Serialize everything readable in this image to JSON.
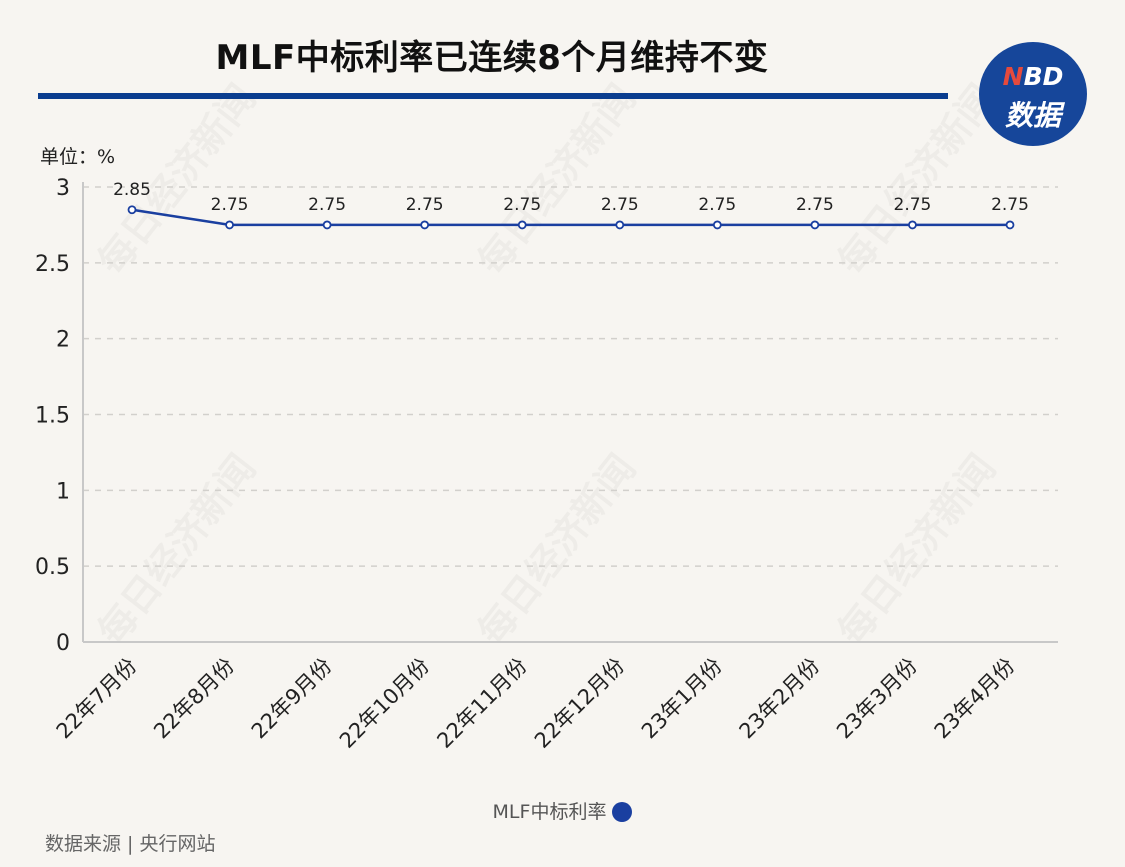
{
  "header": {
    "title": "MLF中标利率已连续8个月维持不变",
    "logo_top_n": "N",
    "logo_top_rest": "BD",
    "logo_bottom": "数据"
  },
  "unit_label": "单位：%",
  "legend_label": "MLF中标利率",
  "source": "数据来源 | 央行网站",
  "watermark_text": "每日经济新闻",
  "colors": {
    "line": "#1a3fa0",
    "title_rule": "#0a3d8f",
    "logo_bg": "#16469a",
    "logo_accent": "#e64a3c"
  },
  "chart_data": {
    "type": "line",
    "categories": [
      "22年7月份",
      "22年8月份",
      "22年9月份",
      "22年10月份",
      "22年11月份",
      "22年12月份",
      "23年1月份",
      "23年2月份",
      "23年3月份",
      "23年4月份"
    ],
    "series": [
      {
        "name": "MLF中标利率",
        "values": [
          2.85,
          2.75,
          2.75,
          2.75,
          2.75,
          2.75,
          2.75,
          2.75,
          2.75,
          2.75
        ]
      }
    ],
    "yticks": [
      "0",
      "0.5",
      "1",
      "1.5",
      "2",
      "2.5",
      "3"
    ],
    "ylim": [
      0,
      3
    ],
    "grid": true,
    "data_labels": [
      "2.85",
      "2.75",
      "2.75",
      "2.75",
      "2.75",
      "2.75",
      "2.75",
      "2.75",
      "2.75",
      "2.75"
    ]
  }
}
